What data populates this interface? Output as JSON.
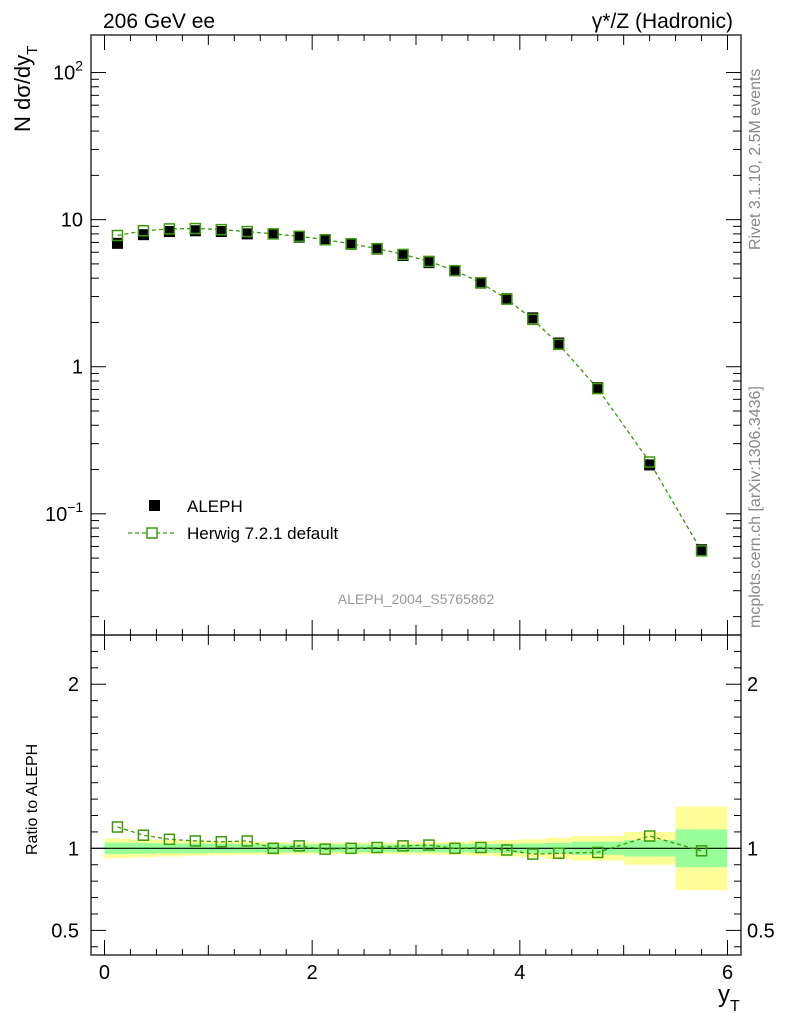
{
  "header": {
    "left": "206 GeV ee",
    "right": "γ*/Z (Hadronic)"
  },
  "side_labels": {
    "rivet": "Rivet 3.1.10,  2.5M events",
    "mcplots": "mcplots.cern.ch [arXiv:1306.3436]"
  },
  "analysis_label": "ALEPH_2004_S5765862",
  "colors": {
    "data": "#000000",
    "mc": "#3a9a0a",
    "band_inner": "#99ff99",
    "band_outer": "#ffff99",
    "analysis_label": "#999999",
    "side_labels": "#888888"
  },
  "chart_data": [
    {
      "type": "scatter",
      "panel": "main",
      "ylabel_parts": {
        "main": "N dσ/dy",
        "sub": "T"
      },
      "yscale": "log",
      "ylim": [
        0.015,
        180
      ],
      "xlim": [
        -0.13,
        6.13
      ],
      "y_ticks": [
        {
          "value": 0.1,
          "base": "10",
          "exp": "−1"
        },
        {
          "value": 1,
          "base": "1",
          "exp": ""
        },
        {
          "value": 10,
          "base": "10",
          "exp": ""
        },
        {
          "value": 100,
          "base": "10",
          "exp": "2"
        }
      ],
      "legend_position": "middle-left",
      "series": [
        {
          "name": "ALEPH",
          "marker": "filled-square",
          "x": [
            0.125,
            0.375,
            0.625,
            0.875,
            1.125,
            1.375,
            1.625,
            1.875,
            2.125,
            2.375,
            2.625,
            2.875,
            3.125,
            3.375,
            3.625,
            3.875,
            4.125,
            4.375,
            4.75,
            5.25,
            5.75
          ],
          "y": [
            6.9,
            7.9,
            8.3,
            8.4,
            8.3,
            8.0,
            8.0,
            7.6,
            7.3,
            6.8,
            6.3,
            5.7,
            5.1,
            4.5,
            3.7,
            2.9,
            2.15,
            1.45,
            0.72,
            0.215,
            0.057
          ]
        },
        {
          "name": "Herwig 7.2.1 default",
          "marker": "open-square",
          "line": "dashed",
          "x": [
            0.125,
            0.375,
            0.625,
            0.875,
            1.125,
            1.375,
            1.625,
            1.875,
            2.125,
            2.375,
            2.625,
            2.875,
            3.125,
            3.375,
            3.625,
            3.875,
            4.125,
            4.375,
            4.75,
            5.25,
            5.75
          ],
          "y": [
            7.8,
            8.4,
            8.65,
            8.7,
            8.55,
            8.3,
            8.0,
            7.7,
            7.3,
            6.85,
            6.35,
            5.8,
            5.2,
            4.5,
            3.72,
            2.88,
            2.1,
            1.42,
            0.71,
            0.225,
            0.056
          ]
        }
      ]
    },
    {
      "type": "scatter",
      "panel": "ratio",
      "ylabel": "Ratio to ALEPH",
      "xlabel_parts": {
        "main": "y",
        "sub": "T"
      },
      "yscale": "linear",
      "ylim": [
        0.35,
        2.3
      ],
      "xlim": [
        -0.13,
        6.13
      ],
      "y_ticks": [
        0.5,
        1,
        2
      ],
      "y_tick_labels": [
        "0.5",
        "1",
        "2"
      ],
      "x_ticks": [
        0,
        2,
        4,
        6
      ],
      "x_tick_labels": [
        "0",
        "2",
        "4",
        "6"
      ],
      "reference_line": 1,
      "bands": {
        "x_edges": [
          0.0,
          0.25,
          0.5,
          0.75,
          1.0,
          1.25,
          1.5,
          1.75,
          2.0,
          2.25,
          2.5,
          2.75,
          3.0,
          3.25,
          3.5,
          3.75,
          4.0,
          4.25,
          4.5,
          5.0,
          5.5,
          6.0
        ],
        "inner_half_width": [
          0.035,
          0.033,
          0.03,
          0.03,
          0.028,
          0.027,
          0.026,
          0.025,
          0.025,
          0.024,
          0.024,
          0.024,
          0.025,
          0.026,
          0.027,
          0.028,
          0.03,
          0.032,
          0.04,
          0.05,
          0.115
        ],
        "outer_half_width": [
          0.06,
          0.055,
          0.05,
          0.045,
          0.042,
          0.04,
          0.038,
          0.036,
          0.035,
          0.035,
          0.035,
          0.036,
          0.038,
          0.04,
          0.045,
          0.05,
          0.055,
          0.065,
          0.075,
          0.1,
          0.255
        ]
      },
      "series": [
        {
          "name": "Herwig 7.2.1 default",
          "marker": "open-square",
          "line": "dashed",
          "x": [
            0.125,
            0.375,
            0.625,
            0.875,
            1.125,
            1.375,
            1.625,
            1.875,
            2.125,
            2.375,
            2.625,
            2.875,
            3.125,
            3.375,
            3.625,
            3.875,
            4.125,
            4.375,
            4.75,
            5.25,
            5.75
          ],
          "y": [
            1.13,
            1.08,
            1.055,
            1.045,
            1.04,
            1.045,
            1.0,
            1.015,
            0.995,
            1.0,
            1.005,
            1.015,
            1.02,
            1.0,
            1.005,
            0.99,
            0.965,
            0.97,
            0.975,
            1.075,
            0.985
          ]
        }
      ]
    }
  ]
}
